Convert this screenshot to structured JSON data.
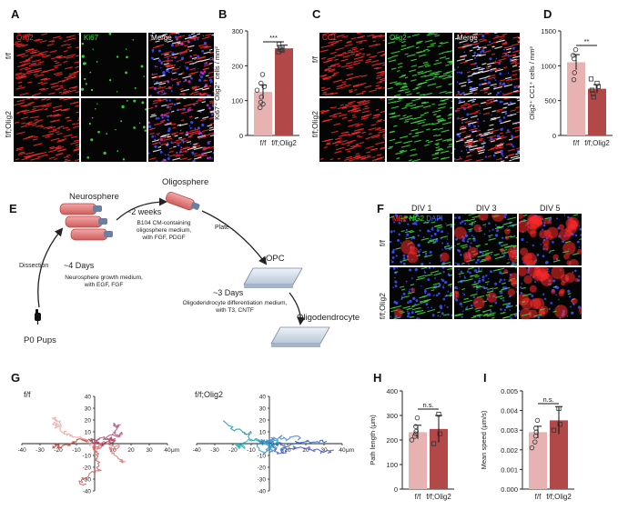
{
  "panels": {
    "A": {
      "letter": "A",
      "channels": [
        {
          "label": "Olig2",
          "color": "#ff3030"
        },
        {
          "label": "Ki67",
          "color": "#3ddc3d"
        },
        {
          "label": "Merge",
          "color": "#ffffff"
        }
      ],
      "rows": [
        "f/f",
        "f/f;Olig2"
      ]
    },
    "B": {
      "letter": "B"
    },
    "C": {
      "letter": "C",
      "channels": [
        {
          "label": "CC1",
          "color": "#ff3030"
        },
        {
          "label": "Olig2",
          "color": "#3ddc3d"
        },
        {
          "label": "Merge",
          "color": "#ffffff"
        }
      ],
      "rows": [
        "f/f",
        "f/f;Olig2"
      ]
    },
    "D": {
      "letter": "D"
    },
    "E": {
      "letter": "E",
      "neurosphere": "Neurosphere",
      "oligosphere": "Oligosphere",
      "two_weeks": "~2 weeks",
      "b104_medium": "B104 CM-containing\noligosphere medium,\nwith FGF, PDGF",
      "plate": "Plate",
      "opc": "OPC",
      "dissection": "Dissection",
      "four_days": "~4 Days",
      "ns_medium": "Neurosphere growth medium,\nwith EGF, FGF",
      "three_days": "~3 Days",
      "diff_medium": "Oligodendrocyte differentiation medium,\nwith T3, CNTF",
      "oligodendrocyte": "Oligodendrocyte",
      "pups": "P0 Pups"
    },
    "F": {
      "letter": "F",
      "columns": [
        "DIV 1",
        "DIV 3",
        "DIV 5"
      ],
      "stain_labels": [
        {
          "label": "MBP",
          "color": "#ff3030"
        },
        {
          "label": "NG2",
          "color": "#3ddc3d"
        },
        {
          "label": "DAPI",
          "color": "#4a6bff"
        }
      ],
      "rows": [
        "f/f",
        "f/f;Olig2"
      ]
    },
    "G": {
      "letter": "G",
      "left_title": "f/f",
      "right_title": "f/f;Olig2",
      "x_ticks": [
        "-40",
        "-30",
        "-20",
        "-10",
        "10",
        "20",
        "30",
        "40"
      ],
      "y_ticks": [
        "40",
        "30",
        "20",
        "10",
        "-10",
        "-20",
        "-30",
        "-40"
      ],
      "unit": "μm"
    },
    "H": {
      "letter": "H"
    },
    "I": {
      "letter": "I"
    }
  },
  "chart_data": [
    {
      "panel": "B",
      "type": "bar",
      "categories": [
        "f/f",
        "f/f;Olig2"
      ],
      "values": [
        125,
        250
      ],
      "errors": [
        20,
        9
      ],
      "points": [
        [
          175,
          150,
          110,
          95,
          80,
          130,
          90,
          140
        ],
        [
          262,
          253,
          247,
          244,
          240
        ]
      ],
      "ylabel": "Ki67⁺ Olig2⁺ cells / mm²",
      "ylim": [
        0,
        300
      ],
      "yticks": [
        0,
        100,
        200,
        300
      ],
      "significance": "***",
      "colors": [
        "#e9b2b2",
        "#b24848"
      ]
    },
    {
      "panel": "D",
      "type": "bar",
      "categories": [
        "f/f",
        "f/f;Olig2"
      ],
      "values": [
        1050,
        670
      ],
      "errors": [
        110,
        60
      ],
      "points": [
        [
          1230,
          1100,
          900,
          800,
          1150
        ],
        [
          810,
          750,
          700,
          650,
          600,
          550
        ]
      ],
      "ylabel": "Olig2⁺ CC1⁺ cells / mm²",
      "ylim": [
        0,
        1500
      ],
      "yticks": [
        0,
        500,
        1000,
        1500
      ],
      "significance": "**",
      "colors": [
        "#e9b2b2",
        "#b24848"
      ]
    },
    {
      "panel": "H",
      "type": "bar",
      "categories": [
        "f/f",
        "f/f;Olig2"
      ],
      "values": [
        232,
        245
      ],
      "errors": [
        28,
        55
      ],
      "points": [
        [
          290,
          255,
          235,
          225,
          215,
          200
        ],
        [
          305,
          225,
          185
        ]
      ],
      "ylabel": "Path length (μm)",
      "ylim": [
        0,
        400
      ],
      "yticks": [
        0,
        100,
        200,
        300,
        400
      ],
      "significance": "n.s.",
      "colors": [
        "#e9b2b2",
        "#b24848"
      ]
    },
    {
      "panel": "I",
      "type": "bar",
      "categories": [
        "f/f",
        "f/f;Olig2"
      ],
      "values": [
        0.0029,
        0.0035
      ],
      "errors": [
        0.0003,
        0.0007
      ],
      "points": [
        [
          0.0035,
          0.0031,
          0.0029,
          0.0027,
          0.0024,
          0.0021
        ],
        [
          0.0041,
          0.0033,
          0.003
        ]
      ],
      "ylabel": "Mean speed (μm/s)",
      "ylim": [
        0,
        0.005
      ],
      "yticks": [
        "0.000",
        "0.001",
        "0.002",
        "0.003",
        "0.004",
        "0.005"
      ],
      "significance": "n.s.",
      "colors": [
        "#e9b2b2",
        "#b24848"
      ]
    }
  ]
}
